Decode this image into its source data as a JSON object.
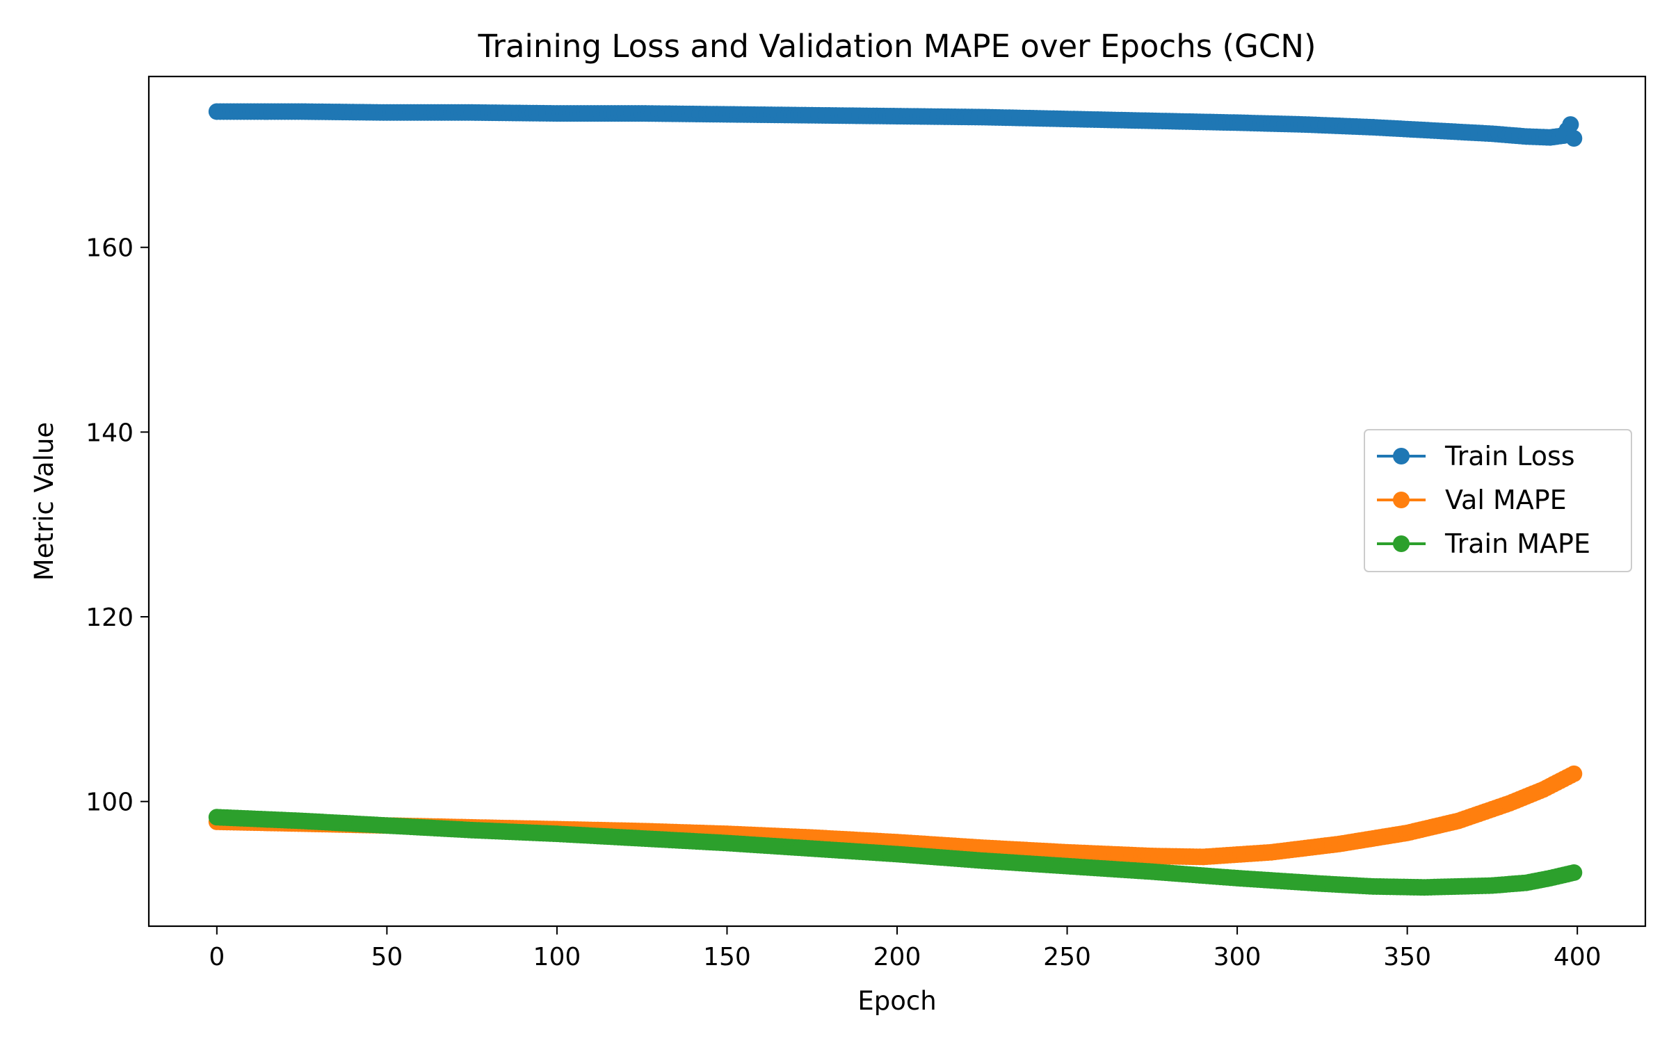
{
  "chart_data": {
    "type": "line",
    "title": "Training Loss and Validation MAPE over Epochs (GCN)",
    "xlabel": "Epoch",
    "ylabel": "Metric Value",
    "xlim": [
      -20,
      420
    ],
    "ylim": [
      86.5,
      178.5
    ],
    "xticks": [
      0,
      50,
      100,
      150,
      200,
      250,
      300,
      350,
      400
    ],
    "yticks": [
      100,
      120,
      140,
      160
    ],
    "grid": false,
    "legend_position": "center-right",
    "markers": "circle",
    "series": [
      {
        "name": "Train Loss",
        "color": "#1f77b4",
        "x": [
          0,
          25,
          50,
          75,
          100,
          125,
          150,
          175,
          200,
          225,
          250,
          275,
          300,
          320,
          340,
          360,
          375,
          385,
          392,
          396,
          398,
          399
        ],
        "y": [
          174.7,
          174.7,
          174.6,
          174.6,
          174.5,
          174.5,
          174.4,
          174.3,
          174.2,
          174.1,
          173.9,
          173.7,
          173.5,
          173.3,
          173.0,
          172.6,
          172.3,
          172.0,
          171.9,
          172.1,
          173.3,
          171.8
        ]
      },
      {
        "name": "Val MAPE",
        "color": "#ff7f0e",
        "x": [
          0,
          25,
          50,
          75,
          100,
          125,
          150,
          175,
          200,
          225,
          250,
          275,
          290,
          310,
          330,
          350,
          365,
          380,
          390,
          399
        ],
        "y": [
          97.8,
          97.6,
          97.4,
          97.2,
          97.0,
          96.8,
          96.5,
          96.1,
          95.6,
          95.0,
          94.5,
          94.1,
          94.0,
          94.5,
          95.4,
          96.6,
          97.9,
          99.8,
          101.3,
          103.0
        ]
      },
      {
        "name": "Train MAPE",
        "color": "#2ca02c",
        "x": [
          0,
          25,
          50,
          75,
          100,
          125,
          150,
          175,
          200,
          225,
          250,
          275,
          300,
          325,
          340,
          355,
          365,
          375,
          385,
          392,
          399
        ],
        "y": [
          98.3,
          97.9,
          97.4,
          96.9,
          96.5,
          96.0,
          95.5,
          94.9,
          94.3,
          93.6,
          93.0,
          92.4,
          91.7,
          91.1,
          90.8,
          90.7,
          90.8,
          90.9,
          91.2,
          91.7,
          92.3
        ]
      }
    ]
  }
}
